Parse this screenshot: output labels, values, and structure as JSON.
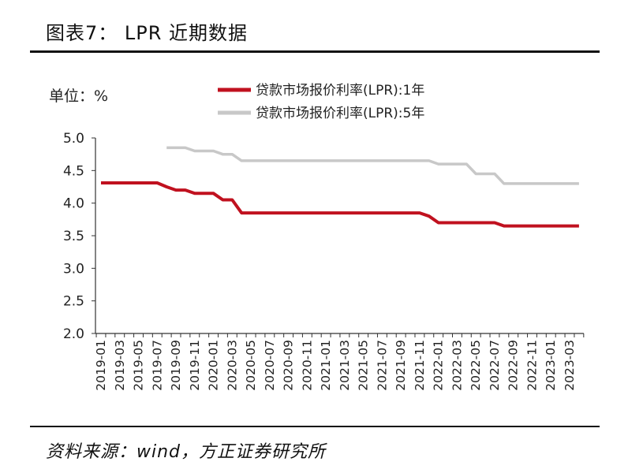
{
  "header": {
    "title": "图表7： LPR 近期数据"
  },
  "footer": {
    "source": "资料来源：wind，方正证券研究所"
  },
  "chart_data": {
    "type": "line",
    "unit_label": "单位：%",
    "ylim": [
      2.0,
      5.0
    ],
    "yticks": [
      "2.0",
      "2.5",
      "3.0",
      "3.5",
      "4.0",
      "4.5",
      "5.0"
    ],
    "x_start": "2019-01",
    "x_end": "2023-04",
    "xtick_labels": [
      "2019-01",
      "2019-03",
      "2019-05",
      "2019-07",
      "2019-09",
      "2019-11",
      "2020-01",
      "2020-03",
      "2020-05",
      "2020-07",
      "2020-09",
      "2020-11",
      "2021-01",
      "2021-03",
      "2021-05",
      "2021-07",
      "2021-09",
      "2021-11",
      "2022-01",
      "2022-03",
      "2022-05",
      "2022-07",
      "2022-09",
      "2022-11",
      "2023-01",
      "2023-03"
    ],
    "series": [
      {
        "name": "贷款市场报价利率(LPR):1年",
        "color": "#c0111f",
        "values": [
          4.31,
          4.31,
          4.31,
          4.31,
          4.31,
          4.31,
          4.31,
          4.25,
          4.2,
          4.2,
          4.15,
          4.15,
          4.15,
          4.05,
          4.05,
          3.85,
          3.85,
          3.85,
          3.85,
          3.85,
          3.85,
          3.85,
          3.85,
          3.85,
          3.85,
          3.85,
          3.85,
          3.85,
          3.85,
          3.85,
          3.85,
          3.85,
          3.85,
          3.85,
          3.85,
          3.8,
          3.7,
          3.7,
          3.7,
          3.7,
          3.7,
          3.7,
          3.7,
          3.65,
          3.65,
          3.65,
          3.65,
          3.65,
          3.65,
          3.65,
          3.65,
          3.65
        ]
      },
      {
        "name": "贷款市场报价利率(LPR):5年",
        "color": "#c8c8c8",
        "values": [
          null,
          null,
          null,
          null,
          null,
          null,
          null,
          4.85,
          4.85,
          4.85,
          4.8,
          4.8,
          4.8,
          4.75,
          4.75,
          4.65,
          4.65,
          4.65,
          4.65,
          4.65,
          4.65,
          4.65,
          4.65,
          4.65,
          4.65,
          4.65,
          4.65,
          4.65,
          4.65,
          4.65,
          4.65,
          4.65,
          4.65,
          4.65,
          4.65,
          4.65,
          4.6,
          4.6,
          4.6,
          4.6,
          4.45,
          4.45,
          4.45,
          4.3,
          4.3,
          4.3,
          4.3,
          4.3,
          4.3,
          4.3,
          4.3,
          4.3
        ]
      }
    ],
    "legend": "top"
  }
}
